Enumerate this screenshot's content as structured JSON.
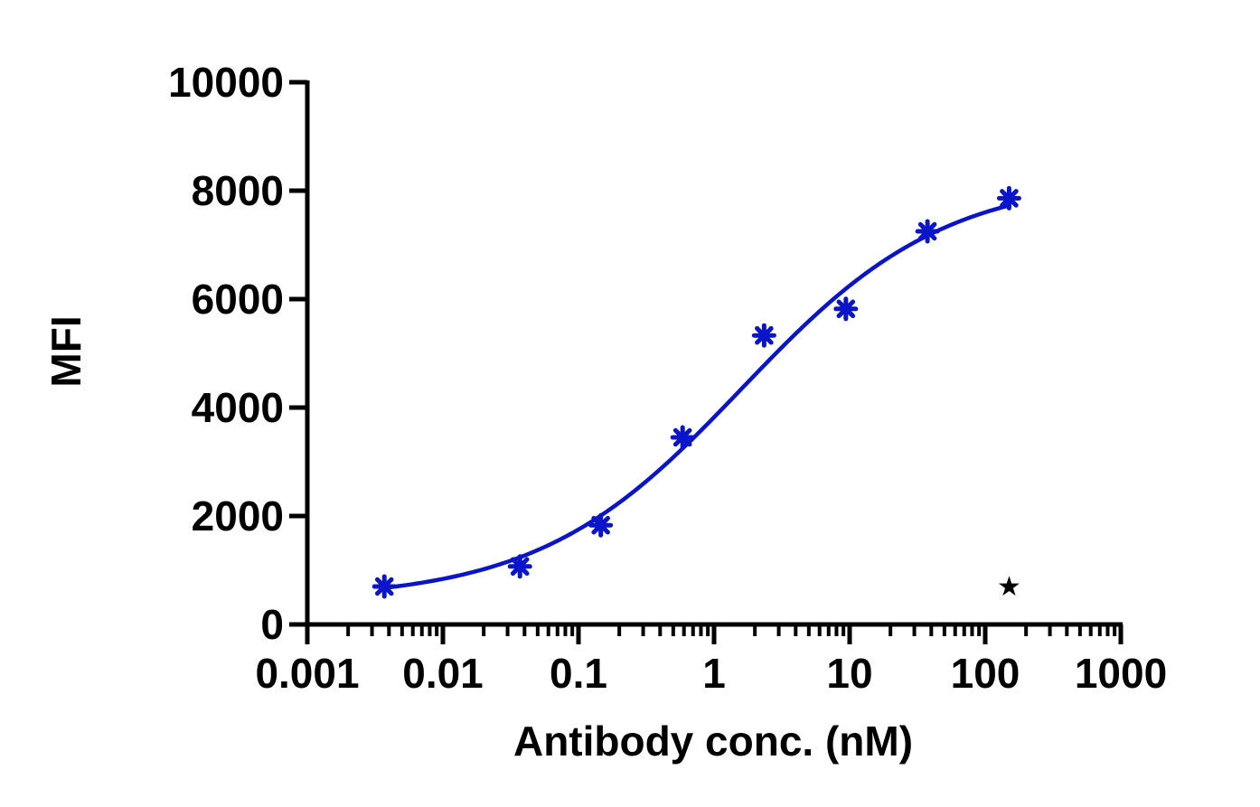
{
  "chart_data": {
    "type": "scatter",
    "title": "",
    "xlabel": "Antibody conc. (nM)",
    "ylabel": "MFI",
    "x_scale": "log",
    "xlim": [
      0.001,
      1000
    ],
    "ylim": [
      0,
      10000
    ],
    "x_ticks": [
      0.001,
      0.01,
      0.1,
      1,
      10,
      100,
      1000
    ],
    "x_tick_labels": [
      "0.001",
      "0.01",
      "0.1",
      "1",
      "10",
      "100",
      "1000"
    ],
    "y_ticks": [
      0,
      2000,
      4000,
      6000,
      8000,
      10000
    ],
    "y_tick_labels": [
      "0",
      "2000",
      "4000",
      "6000",
      "8000",
      "10000"
    ],
    "grid": false,
    "series": [
      {
        "marker": "asterisk",
        "color": "#0a14c8",
        "x": [
          0.0037,
          0.037,
          0.146,
          0.586,
          2.34,
          9.38,
          37.5,
          150
        ],
        "y": [
          700,
          1070,
          1830,
          3450,
          5330,
          5820,
          7250,
          7860
        ],
        "fit": {
          "model": "4PL",
          "bottom": 450,
          "top": 8250,
          "ec50": 1.6,
          "hill": 0.58
        }
      }
    ],
    "annotations": [
      {
        "text": "★",
        "x": 150,
        "y": 720
      }
    ]
  }
}
